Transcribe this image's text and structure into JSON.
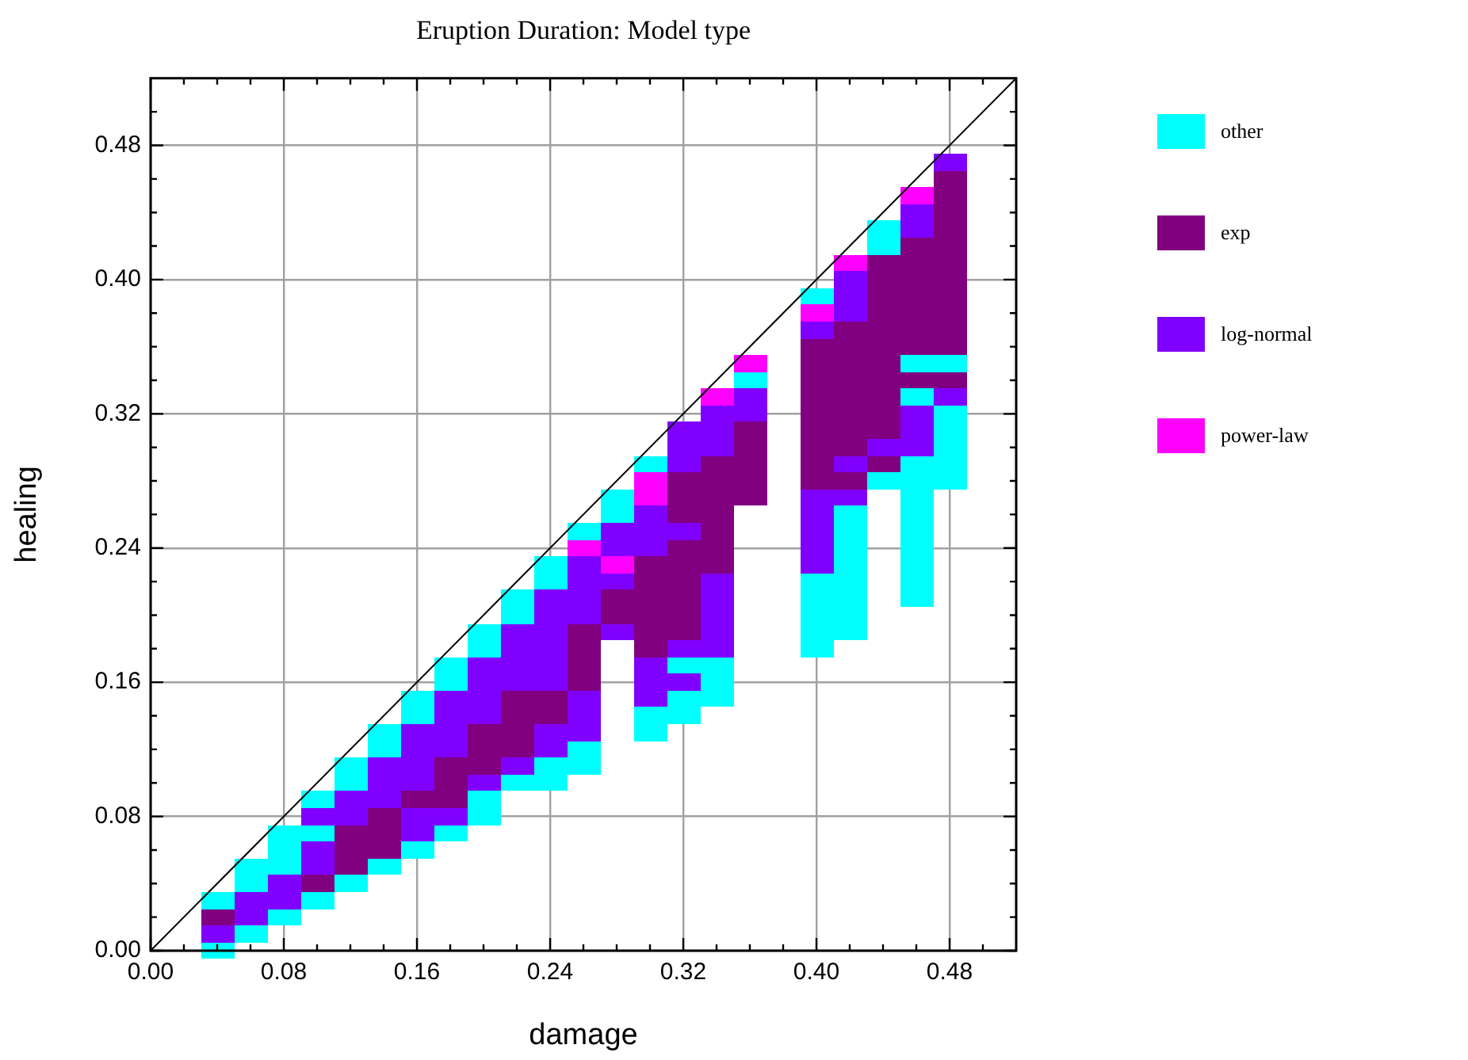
{
  "chart_data": {
    "type": "scatter",
    "title": "Eruption Duration: Model type",
    "xlabel": "damage",
    "ylabel": "healing",
    "xlim": [
      0,
      0.52
    ],
    "ylim": [
      0,
      0.52
    ],
    "xticks": [
      {
        "value": 0,
        "label": "0.00"
      },
      {
        "value": 0.02,
        "label": null
      },
      {
        "value": 0.04,
        "label": null
      },
      {
        "value": 0.06,
        "label": null
      },
      {
        "value": 0.08,
        "label": "0.08"
      },
      {
        "value": 0.1,
        "label": null
      },
      {
        "value": 0.12,
        "label": null
      },
      {
        "value": 0.14,
        "label": null
      },
      {
        "value": 0.16,
        "label": "0.16"
      },
      {
        "value": 0.18,
        "label": null
      },
      {
        "value": 0.2,
        "label": null
      },
      {
        "value": 0.22,
        "label": null
      },
      {
        "value": 0.24,
        "label": "0.24"
      },
      {
        "value": 0.26,
        "label": null
      },
      {
        "value": 0.28,
        "label": null
      },
      {
        "value": 0.3,
        "label": null
      },
      {
        "value": 0.32,
        "label": "0.32"
      },
      {
        "value": 0.34,
        "label": null
      },
      {
        "value": 0.36,
        "label": null
      },
      {
        "value": 0.38,
        "label": null
      },
      {
        "value": 0.4,
        "label": "0.40"
      },
      {
        "value": 0.42,
        "label": null
      },
      {
        "value": 0.44,
        "label": null
      },
      {
        "value": 0.46,
        "label": null
      },
      {
        "value": 0.48,
        "label": "0.48"
      },
      {
        "value": 0.5,
        "label": null
      }
    ],
    "yticks": [
      {
        "value": 0,
        "label": "0.00"
      },
      {
        "value": 0.02,
        "label": null
      },
      {
        "value": 0.04,
        "label": null
      },
      {
        "value": 0.06,
        "label": null
      },
      {
        "value": 0.08,
        "label": "0.08"
      },
      {
        "value": 0.1,
        "label": null
      },
      {
        "value": 0.12,
        "label": null
      },
      {
        "value": 0.14,
        "label": null
      },
      {
        "value": 0.16,
        "label": "0.16"
      },
      {
        "value": 0.18,
        "label": null
      },
      {
        "value": 0.2,
        "label": null
      },
      {
        "value": 0.22,
        "label": null
      },
      {
        "value": 0.24,
        "label": "0.24"
      },
      {
        "value": 0.26,
        "label": null
      },
      {
        "value": 0.28,
        "label": null
      },
      {
        "value": 0.3,
        "label": null
      },
      {
        "value": 0.32,
        "label": "0.32"
      },
      {
        "value": 0.34,
        "label": null
      },
      {
        "value": 0.36,
        "label": null
      },
      {
        "value": 0.38,
        "label": null
      },
      {
        "value": 0.4,
        "label": "0.40"
      },
      {
        "value": 0.42,
        "label": null
      },
      {
        "value": 0.44,
        "label": null
      },
      {
        "value": 0.46,
        "label": null
      },
      {
        "value": 0.48,
        "label": "0.48"
      },
      {
        "value": 0.5,
        "label": null
      }
    ],
    "grid": true,
    "legend": "top right",
    "marker": "square",
    "series": [
      {
        "name": "other",
        "color": "#00ffff",
        "x": [
          0.04,
          0.04,
          0.06,
          0.06,
          0.06,
          0.08,
          0.08,
          0.08,
          0.08,
          0.1,
          0.1,
          0.1,
          0.12,
          0.12,
          0.12,
          0.14,
          0.14,
          0.14,
          0.16,
          0.16,
          0.16,
          0.18,
          0.18,
          0.18,
          0.2,
          0.2,
          0.2,
          0.2,
          0.22,
          0.22,
          0.22,
          0.24,
          0.24,
          0.24,
          0.24,
          0.26,
          0.26,
          0.26,
          0.28,
          0.28,
          0.3,
          0.3,
          0.3,
          0.32,
          0.32,
          0.32,
          0.34,
          0.34,
          0.34,
          0.36,
          0.4,
          0.4,
          0.4,
          0.4,
          0.4,
          0.4,
          0.42,
          0.42,
          0.42,
          0.42,
          0.42,
          0.42,
          0.42,
          0.42,
          0.44,
          0.44,
          0.44,
          0.46,
          0.46,
          0.46,
          0.46,
          0.46,
          0.46,
          0.46,
          0.46,
          0.46,
          0.46,
          0.46,
          0.48,
          0.48,
          0.48,
          0.48,
          0.48,
          0.48
        ],
        "values": [
          0,
          0.03,
          0.01,
          0.04,
          0.05,
          0.02,
          0.05,
          0.06,
          0.07,
          0.03,
          0.07,
          0.09,
          0.04,
          0.1,
          0.11,
          0.05,
          0.12,
          0.13,
          0.06,
          0.14,
          0.15,
          0.07,
          0.16,
          0.17,
          0.08,
          0.09,
          0.18,
          0.19,
          0.1,
          0.2,
          0.21,
          0.1,
          0.11,
          0.22,
          0.23,
          0.11,
          0.12,
          0.25,
          0.26,
          0.27,
          0.13,
          0.14,
          0.29,
          0.14,
          0.15,
          0.17,
          0.15,
          0.16,
          0.17,
          0.34,
          0.18,
          0.19,
          0.2,
          0.21,
          0.22,
          0.39,
          0.19,
          0.2,
          0.21,
          0.22,
          0.23,
          0.24,
          0.25,
          0.26,
          0.28,
          0.42,
          0.43,
          0.21,
          0.22,
          0.23,
          0.24,
          0.25,
          0.26,
          0.27,
          0.28,
          0.29,
          0.33,
          0.35,
          0.28,
          0.29,
          0.3,
          0.31,
          0.32,
          0.35
        ]
      },
      {
        "name": "exp",
        "color": "#800080",
        "x": [
          0.04,
          0.1,
          0.12,
          0.12,
          0.12,
          0.14,
          0.14,
          0.14,
          0.16,
          0.18,
          0.18,
          0.18,
          0.2,
          0.2,
          0.2,
          0.22,
          0.22,
          0.22,
          0.22,
          0.24,
          0.24,
          0.26,
          0.26,
          0.26,
          0.26,
          0.28,
          0.28,
          0.3,
          0.3,
          0.3,
          0.3,
          0.3,
          0.3,
          0.32,
          0.32,
          0.32,
          0.32,
          0.32,
          0.32,
          0.32,
          0.32,
          0.32,
          0.34,
          0.34,
          0.34,
          0.34,
          0.34,
          0.34,
          0.34,
          0.36,
          0.36,
          0.36,
          0.36,
          0.36,
          0.4,
          0.4,
          0.4,
          0.4,
          0.4,
          0.4,
          0.4,
          0.4,
          0.4,
          0.42,
          0.42,
          0.42,
          0.42,
          0.42,
          0.42,
          0.42,
          0.42,
          0.42,
          0.44,
          0.44,
          0.44,
          0.44,
          0.44,
          0.44,
          0.44,
          0.44,
          0.44,
          0.44,
          0.44,
          0.44,
          0.46,
          0.46,
          0.46,
          0.46,
          0.46,
          0.46,
          0.46,
          0.46,
          0.48,
          0.48,
          0.48,
          0.48,
          0.48,
          0.48,
          0.48,
          0.48,
          0.48,
          0.48,
          0.48,
          0.48
        ],
        "values": [
          0.02,
          0.04,
          0.05,
          0.06,
          0.07,
          0.06,
          0.07,
          0.08,
          0.09,
          0.09,
          0.1,
          0.11,
          0.11,
          0.12,
          0.13,
          0.12,
          0.13,
          0.14,
          0.15,
          0.14,
          0.15,
          0.16,
          0.17,
          0.18,
          0.19,
          0.2,
          0.21,
          0.18,
          0.19,
          0.2,
          0.21,
          0.22,
          0.23,
          0.19,
          0.2,
          0.21,
          0.22,
          0.23,
          0.24,
          0.26,
          0.27,
          0.28,
          0.23,
          0.24,
          0.25,
          0.26,
          0.27,
          0.28,
          0.29,
          0.27,
          0.28,
          0.29,
          0.3,
          0.31,
          0.28,
          0.29,
          0.3,
          0.31,
          0.32,
          0.33,
          0.34,
          0.35,
          0.36,
          0.28,
          0.3,
          0.31,
          0.32,
          0.33,
          0.34,
          0.35,
          0.36,
          0.37,
          0.29,
          0.31,
          0.32,
          0.33,
          0.34,
          0.35,
          0.36,
          0.37,
          0.38,
          0.39,
          0.4,
          0.41,
          0.34,
          0.36,
          0.37,
          0.38,
          0.39,
          0.4,
          0.41,
          0.42,
          0.34,
          0.36,
          0.37,
          0.38,
          0.39,
          0.4,
          0.41,
          0.42,
          0.43,
          0.44,
          0.45,
          0.46
        ]
      },
      {
        "name": "log-normal",
        "color": "#8000ff",
        "x": [
          0.04,
          0.06,
          0.06,
          0.08,
          0.08,
          0.1,
          0.1,
          0.1,
          0.12,
          0.12,
          0.14,
          0.14,
          0.14,
          0.16,
          0.16,
          0.16,
          0.16,
          0.16,
          0.16,
          0.18,
          0.18,
          0.18,
          0.18,
          0.18,
          0.2,
          0.2,
          0.2,
          0.2,
          0.2,
          0.22,
          0.22,
          0.22,
          0.22,
          0.22,
          0.24,
          0.24,
          0.24,
          0.24,
          0.24,
          0.24,
          0.24,
          0.24,
          0.26,
          0.26,
          0.26,
          0.26,
          0.26,
          0.26,
          0.26,
          0.28,
          0.28,
          0.28,
          0.28,
          0.3,
          0.3,
          0.3,
          0.3,
          0.3,
          0.3,
          0.32,
          0.32,
          0.32,
          0.32,
          0.32,
          0.32,
          0.34,
          0.34,
          0.34,
          0.34,
          0.34,
          0.34,
          0.34,
          0.34,
          0.36,
          0.36,
          0.4,
          0.4,
          0.4,
          0.4,
          0.4,
          0.4,
          0.42,
          0.42,
          0.42,
          0.42,
          0.42,
          0.44,
          0.46,
          0.46,
          0.46,
          0.46,
          0.46,
          0.48,
          0.48
        ],
        "values": [
          0.01,
          0.02,
          0.03,
          0.03,
          0.04,
          0.05,
          0.06,
          0.08,
          0.08,
          0.09,
          0.09,
          0.1,
          0.11,
          0.07,
          0.08,
          0.1,
          0.11,
          0.12,
          0.13,
          0.08,
          0.12,
          0.13,
          0.14,
          0.15,
          0.1,
          0.14,
          0.15,
          0.16,
          0.17,
          0.11,
          0.16,
          0.17,
          0.18,
          0.19,
          0.12,
          0.13,
          0.16,
          0.17,
          0.18,
          0.19,
          0.2,
          0.21,
          0.13,
          0.14,
          0.15,
          0.2,
          0.21,
          0.22,
          0.23,
          0.19,
          0.22,
          0.24,
          0.25,
          0.15,
          0.16,
          0.17,
          0.24,
          0.25,
          0.26,
          0.16,
          0.18,
          0.25,
          0.29,
          0.3,
          0.31,
          0.18,
          0.19,
          0.2,
          0.21,
          0.22,
          0.3,
          0.31,
          0.32,
          0.32,
          0.33,
          0.23,
          0.24,
          0.25,
          0.26,
          0.27,
          0.37,
          0.27,
          0.29,
          0.38,
          0.39,
          0.4,
          0.3,
          0.3,
          0.31,
          0.32,
          0.43,
          0.44,
          0.33,
          0.47
        ]
      },
      {
        "name": "power-law",
        "color": "#ff00ff",
        "x": [
          0.26,
          0.28,
          0.3,
          0.3,
          0.34,
          0.36,
          0.4,
          0.42,
          0.46
        ],
        "values": [
          0.24,
          0.23,
          0.27,
          0.28,
          0.33,
          0.35,
          0.38,
          0.41,
          0.45
        ]
      },
      {
        "type": "line",
        "marker": "none",
        "color": "#000000",
        "x": [
          0,
          0.52
        ],
        "values": [
          0,
          0.52
        ]
      }
    ]
  }
}
